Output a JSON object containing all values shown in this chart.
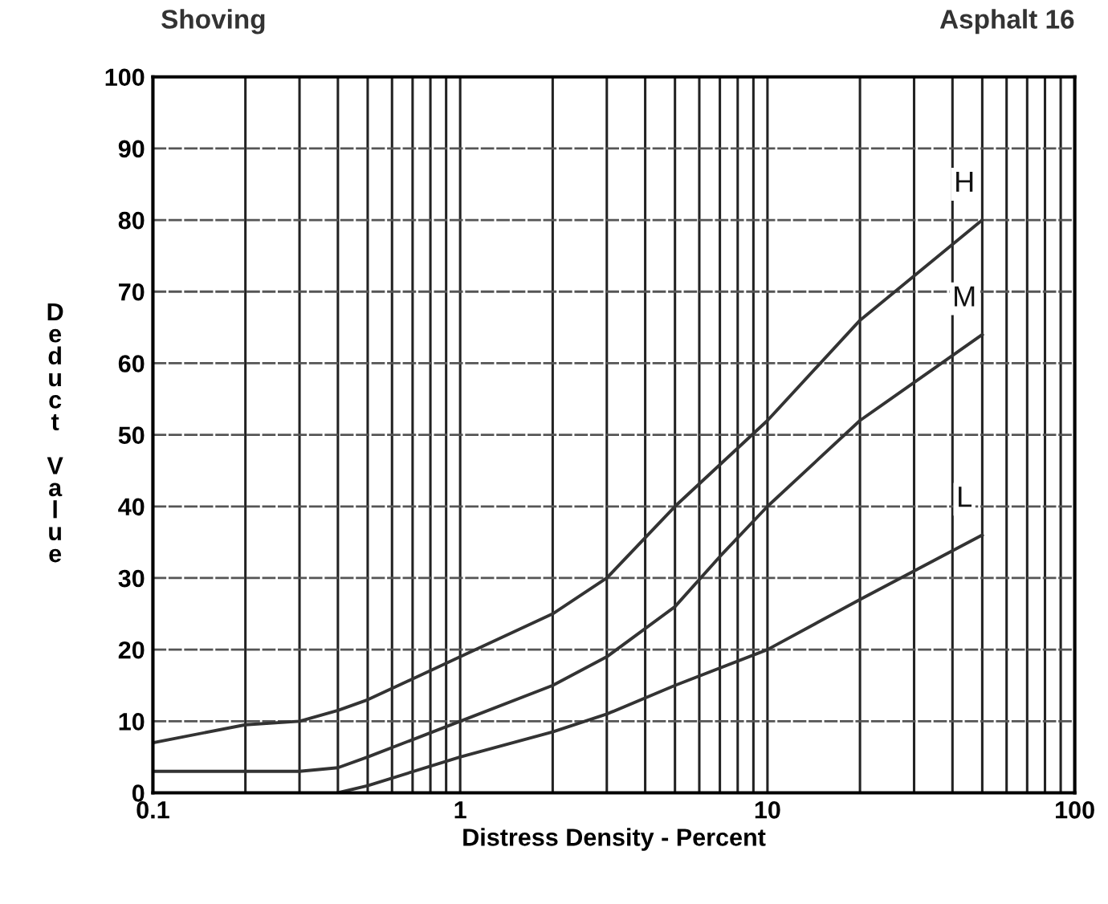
{
  "chart_data": {
    "type": "line",
    "title": "Shoving",
    "subtitle": "Asphalt 16",
    "xlabel": "Distress Density - Percent",
    "ylabel": "Deduct Value",
    "log": "x",
    "xlim": [
      0.1,
      100
    ],
    "xticks": [
      {
        "value": 0.1,
        "label": "0.1"
      },
      1,
      10,
      100
    ],
    "ylim": [
      0,
      100
    ],
    "yticks": [
      0,
      10,
      20,
      30,
      40,
      50,
      60,
      70,
      80,
      90,
      100
    ],
    "grid": true,
    "legend": false,
    "marker": "none",
    "line_style": "solid",
    "series": [
      {
        "name": "H",
        "color": "#333333",
        "x": [
          0.1,
          0.2,
          0.3,
          0.4,
          0.5,
          1,
          2,
          3,
          5,
          10,
          20,
          50
        ],
        "values": [
          7,
          9.5,
          10,
          11.5,
          13,
          19,
          25,
          30,
          40,
          52,
          66,
          80
        ]
      },
      {
        "name": "M",
        "color": "#333333",
        "x": [
          0.1,
          0.3,
          0.4,
          0.5,
          1,
          2,
          3,
          5,
          7,
          10,
          20,
          50
        ],
        "values": [
          3,
          3,
          3.5,
          5,
          10,
          15,
          19,
          26,
          33,
          40,
          52,
          64
        ]
      },
      {
        "name": "L",
        "color": "#333333",
        "x": [
          0.4,
          0.5,
          1,
          2,
          3,
          5,
          10,
          20,
          50
        ],
        "values": [
          0,
          1,
          5,
          8.5,
          11,
          15,
          20,
          27,
          36
        ]
      }
    ]
  }
}
